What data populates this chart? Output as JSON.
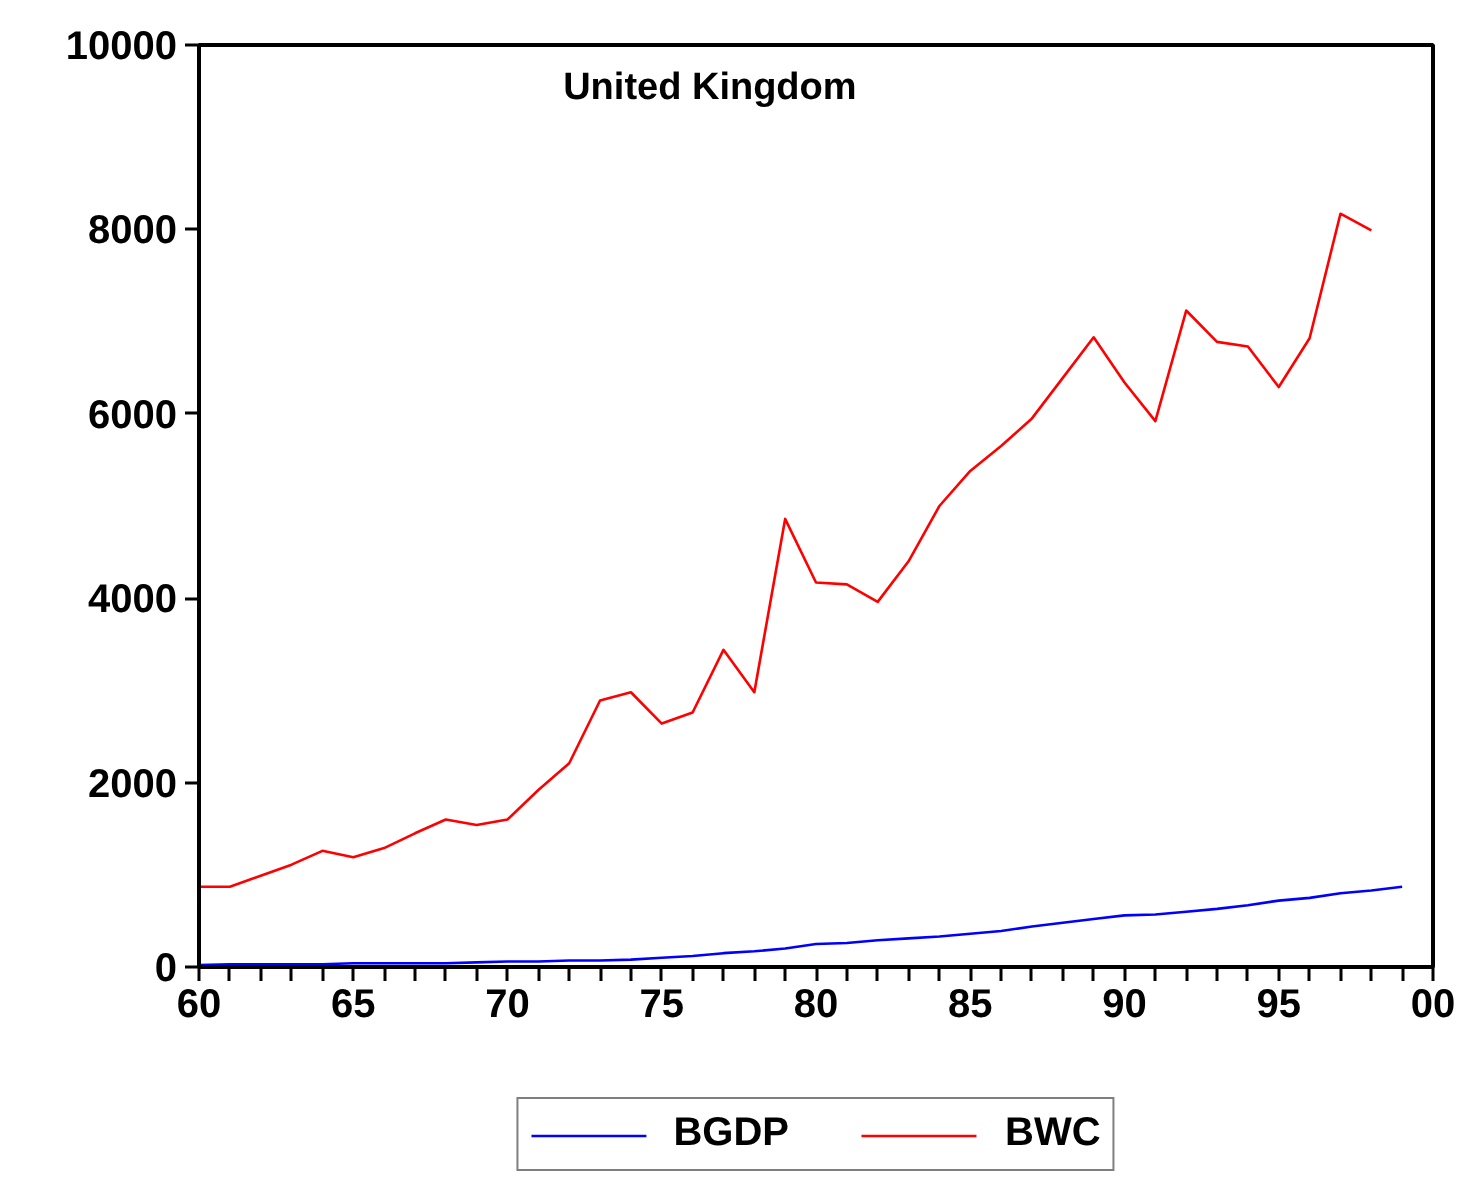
{
  "chart_data": {
    "type": "line",
    "title": "United Kingdom",
    "x": [
      1960,
      1961,
      1962,
      1963,
      1964,
      1965,
      1966,
      1967,
      1968,
      1969,
      1970,
      1971,
      1972,
      1973,
      1974,
      1975,
      1976,
      1977,
      1978,
      1979,
      1980,
      1981,
      1982,
      1983,
      1984,
      1985,
      1986,
      1987,
      1988,
      1989,
      1990,
      1991,
      1992,
      1993,
      1994,
      1995,
      1996,
      1997,
      1998,
      1999
    ],
    "series": [
      {
        "name": "BGDP",
        "color": "#0000ff",
        "values": [
          20,
          30,
          30,
          30,
          30,
          40,
          40,
          40,
          40,
          50,
          60,
          60,
          70,
          70,
          80,
          100,
          120,
          150,
          170,
          200,
          250,
          260,
          290,
          310,
          330,
          360,
          390,
          440,
          480,
          520,
          560,
          570,
          600,
          630,
          670,
          720,
          750,
          800,
          830,
          870
        ]
      },
      {
        "name": "BWC",
        "color": "#ff0000",
        "values": [
          870,
          870,
          990,
          1110,
          1260,
          1190,
          1290,
          1450,
          1600,
          1540,
          1600,
          1920,
          2210,
          2890,
          2980,
          2640,
          2760,
          3440,
          2980,
          4860,
          4170,
          4150,
          3960,
          4400,
          5000,
          5380,
          5650,
          5950,
          6390,
          6830,
          6340,
          5920,
          7120,
          6780,
          6730,
          6290,
          6820,
          8170,
          7990,
          null
        ]
      }
    ],
    "xlim": [
      1960,
      2000
    ],
    "xticks": [
      {
        "value": 1960,
        "label": "60"
      },
      {
        "value": 1961,
        "label": null
      },
      {
        "value": 1962,
        "label": null
      },
      {
        "value": 1963,
        "label": null
      },
      {
        "value": 1964,
        "label": null
      },
      {
        "value": 1965,
        "label": "65"
      },
      {
        "value": 1966,
        "label": null
      },
      {
        "value": 1967,
        "label": null
      },
      {
        "value": 1968,
        "label": null
      },
      {
        "value": 1969,
        "label": null
      },
      {
        "value": 1970,
        "label": "70"
      },
      {
        "value": 1971,
        "label": null
      },
      {
        "value": 1972,
        "label": null
      },
      {
        "value": 1973,
        "label": null
      },
      {
        "value": 1974,
        "label": null
      },
      {
        "value": 1975,
        "label": "75"
      },
      {
        "value": 1976,
        "label": null
      },
      {
        "value": 1977,
        "label": null
      },
      {
        "value": 1978,
        "label": null
      },
      {
        "value": 1979,
        "label": null
      },
      {
        "value": 1980,
        "label": "80"
      },
      {
        "value": 1981,
        "label": null
      },
      {
        "value": 1982,
        "label": null
      },
      {
        "value": 1983,
        "label": null
      },
      {
        "value": 1984,
        "label": null
      },
      {
        "value": 1985,
        "label": "85"
      },
      {
        "value": 1986,
        "label": null
      },
      {
        "value": 1987,
        "label": null
      },
      {
        "value": 1988,
        "label": null
      },
      {
        "value": 1989,
        "label": null
      },
      {
        "value": 1990,
        "label": "90"
      },
      {
        "value": 1991,
        "label": null
      },
      {
        "value": 1992,
        "label": null
      },
      {
        "value": 1993,
        "label": null
      },
      {
        "value": 1994,
        "label": null
      },
      {
        "value": 1995,
        "label": "95"
      },
      {
        "value": 1996,
        "label": null
      },
      {
        "value": 1997,
        "label": null
      },
      {
        "value": 1998,
        "label": null
      },
      {
        "value": 1999,
        "label": null
      },
      {
        "value": 2000,
        "label": "00"
      }
    ],
    "ylim": [
      0,
      10000
    ],
    "yticks": [
      0,
      2000,
      4000,
      6000,
      8000,
      10000
    ],
    "legend": "bottom",
    "marker": "none",
    "line_style": "solid"
  }
}
